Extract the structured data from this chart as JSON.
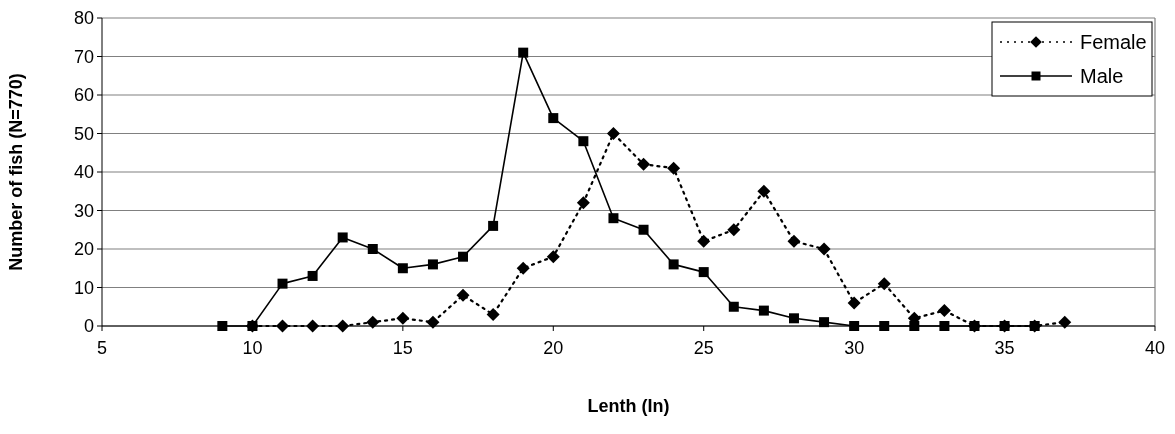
{
  "chart_data": {
    "type": "line",
    "xlabel": "Lenth (In)",
    "ylabel": "Number of fish (N=770)",
    "xlim": [
      5,
      40
    ],
    "xticks": [
      5,
      10,
      15,
      20,
      25,
      30,
      35,
      40
    ],
    "ylim": [
      0,
      80
    ],
    "yticks": [
      0,
      10,
      20,
      30,
      40,
      50,
      60,
      70,
      80
    ],
    "grid": "y",
    "legend": "top right",
    "series": [
      {
        "name": "Female",
        "color": "#000000",
        "marker": "diamond",
        "line_style": "dotted",
        "x": [
          10,
          11,
          12,
          13,
          14,
          15,
          16,
          17,
          18,
          19,
          20,
          21,
          22,
          23,
          24,
          25,
          26,
          27,
          28,
          29,
          30,
          31,
          32,
          33,
          34,
          35,
          36,
          37
        ],
        "values": [
          0,
          0,
          0,
          0,
          1,
          2,
          1,
          8,
          3,
          15,
          18,
          32,
          50,
          42,
          41,
          22,
          25,
          35,
          22,
          20,
          6,
          11,
          2,
          4,
          0,
          0,
          0,
          1
        ]
      },
      {
        "name": "Male",
        "color": "#000000",
        "marker": "square",
        "line_style": "solid",
        "x": [
          9,
          10,
          11,
          12,
          13,
          14,
          15,
          16,
          17,
          18,
          19,
          20,
          21,
          22,
          23,
          24,
          25,
          26,
          27,
          28,
          29,
          30,
          31,
          32,
          33,
          34,
          35,
          36
        ],
        "values": [
          0,
          0,
          11,
          13,
          23,
          20,
          15,
          16,
          18,
          26,
          71,
          54,
          48,
          28,
          25,
          16,
          14,
          5,
          4,
          2,
          1,
          0,
          0,
          0,
          0,
          0,
          0,
          0
        ]
      }
    ]
  }
}
